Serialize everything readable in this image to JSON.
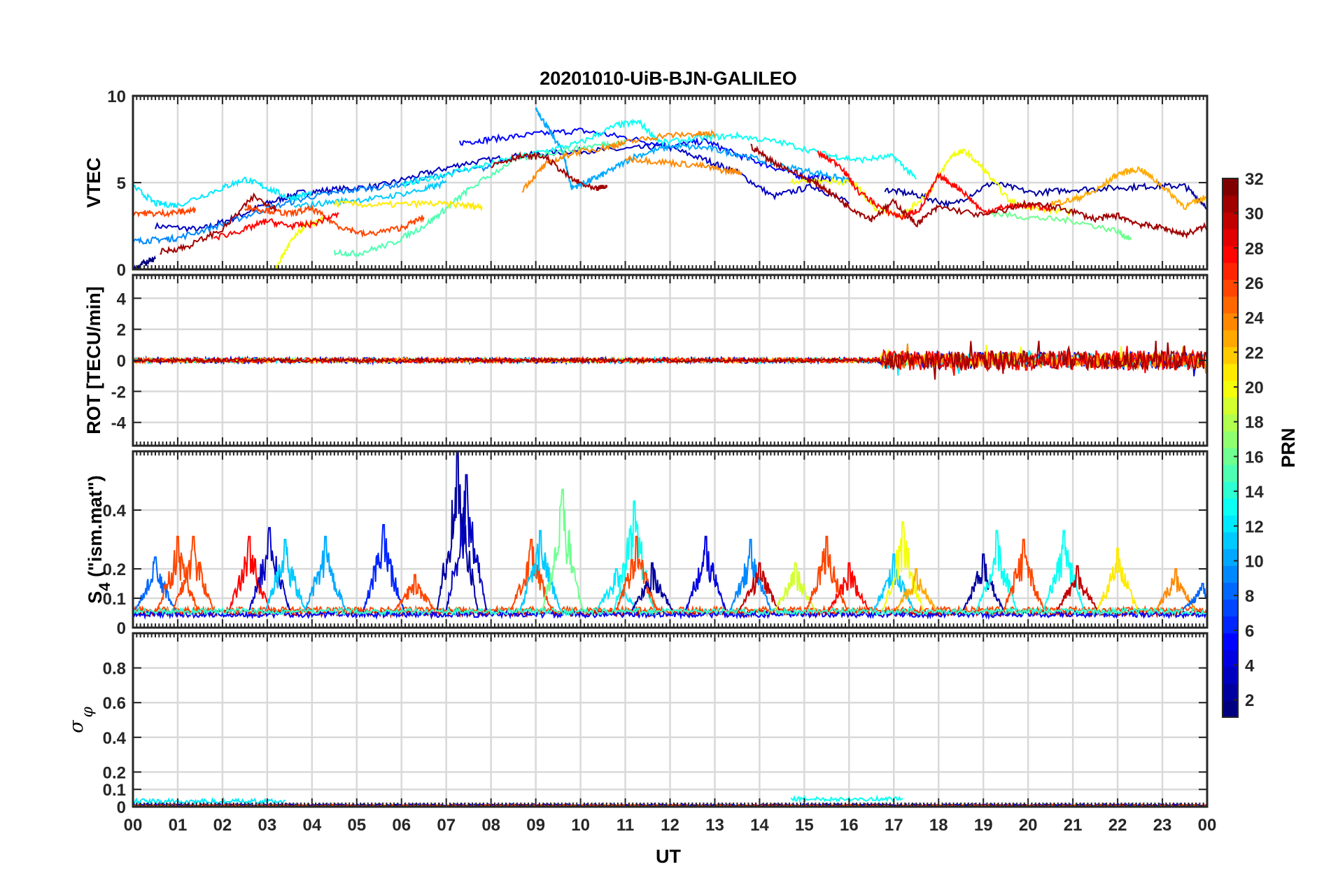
{
  "chart_data": {
    "type": "line",
    "title": "20201010-UiB-BJN-GALILEO",
    "xlabel": "UT",
    "x_ticks": [
      "00",
      "01",
      "02",
      "03",
      "04",
      "05",
      "06",
      "07",
      "08",
      "09",
      "10",
      "11",
      "12",
      "13",
      "14",
      "15",
      "16",
      "17",
      "18",
      "19",
      "20",
      "21",
      "22",
      "23",
      "00"
    ],
    "xlim": [
      0,
      24
    ],
    "grid": true,
    "colorbar": {
      "label": "PRN",
      "range": [
        1,
        32
      ],
      "ticks": [
        "2",
        "4",
        "6",
        "8",
        "10",
        "12",
        "14",
        "16",
        "18",
        "20",
        "22",
        "24",
        "26",
        "28",
        "30",
        "32"
      ],
      "colormap": "jet"
    },
    "panels": [
      {
        "ylabel": "VTEC",
        "ylim": [
          0,
          10
        ],
        "y_ticks": [
          "0",
          "5",
          "10"
        ],
        "series": [
          {
            "prn": 3,
            "x": [
              0.5,
              1.5,
              2.2,
              3.0,
              3.7,
              4.5,
              5.5,
              6.5,
              7.4,
              8.5,
              9.7,
              10.8,
              11.9,
              12.8,
              13.5,
              14.3,
              15.2,
              16.0
            ],
            "y": [
              2.5,
              2.3,
              2.9,
              3.8,
              4.4,
              4.6,
              4.8,
              5.5,
              6.1,
              6.5,
              6.8,
              6.9,
              7.1,
              6.3,
              5.6,
              4.2,
              4.8,
              3.8
            ]
          },
          {
            "prn": 5,
            "x": [
              7.3,
              8.0,
              9.0,
              10.0,
              11.0,
              12.0,
              12.8,
              13.5,
              14.3,
              15.0,
              15.6
            ],
            "y": [
              7.3,
              7.5,
              7.8,
              8.0,
              7.6,
              7.1,
              7.4,
              6.6,
              5.9,
              5.3,
              5.2
            ]
          },
          {
            "prn": 2,
            "x": [
              16.8,
              17.5,
              18.3,
              19.2,
              20.1,
              21.0,
              22.0,
              22.8,
              23.5,
              24.0
            ],
            "y": [
              4.6,
              4.3,
              3.7,
              5.0,
              4.4,
              4.6,
              4.7,
              4.8,
              4.8,
              3.6
            ]
          },
          {
            "prn": 9,
            "x": [
              0.0,
              0.5,
              1.0,
              2.0,
              3.0,
              4.0,
              5.0,
              6.0,
              7.0,
              8.0
            ],
            "y": [
              1.6,
              1.7,
              1.8,
              2.6,
              3.5,
              4.2,
              4.6,
              4.9,
              5.5,
              5.9
            ]
          },
          {
            "prn": 10,
            "x": [
              9.0,
              9.3,
              9.6,
              9.8,
              10.2,
              10.6,
              11.2,
              12.0,
              12.8,
              13.6,
              14.6,
              15.4,
              16.0
            ],
            "y": [
              9.3,
              8.0,
              6.8,
              4.7,
              5.1,
              5.6,
              6.5,
              7.1,
              7.0,
              6.6,
              5.9,
              5.5,
              5.1
            ]
          },
          {
            "prn": 12,
            "x": [
              0.0,
              0.5,
              1.0,
              2.0,
              2.5,
              3.0,
              3.5,
              4.0
            ],
            "y": [
              4.8,
              3.8,
              3.7,
              4.7,
              5.2,
              4.7,
              4.1,
              4.4
            ]
          },
          {
            "prn": 13,
            "x": [
              6.0,
              7.0,
              8.0,
              9.0,
              10.0,
              10.8,
              11.3,
              11.8,
              12.8,
              13.5,
              14.5,
              15.5,
              16.2,
              17.0,
              17.5
            ],
            "y": [
              4.8,
              5.5,
              6.1,
              6.7,
              7.3,
              8.3,
              8.5,
              7.3,
              7.6,
              7.7,
              7.3,
              6.6,
              6.3,
              6.5,
              5.2
            ]
          },
          {
            "prn": 11,
            "x": [
              3.6,
              4.5,
              5.5,
              6.5,
              7.0
            ],
            "y": [
              3.6,
              3.9,
              4.1,
              4.6,
              5.0
            ]
          },
          {
            "prn": 15,
            "x": [
              4.5,
              5.0,
              5.8,
              6.5,
              7.0,
              7.5,
              8.5,
              9.5,
              10.5,
              11.0
            ],
            "y": [
              1.0,
              0.9,
              1.5,
              2.5,
              3.5,
              4.6,
              6.3,
              6.8,
              7.2,
              7.3
            ]
          },
          {
            "prn": 16,
            "x": [
              19.0,
              20.0,
              21.0,
              22.0,
              22.3
            ],
            "y": [
              3.3,
              3.0,
              2.8,
              2.2,
              1.7
            ]
          },
          {
            "prn": 20,
            "x": [
              3.2,
              3.5,
              3.8,
              4.3
            ],
            "y": [
              0.1,
              1.5,
              2.4,
              3.0
            ]
          },
          {
            "prn": 21,
            "x": [
              4.5,
              5.5,
              6.5,
              7.4,
              7.8
            ],
            "y": [
              3.8,
              3.7,
              3.8,
              3.7,
              3.6
            ]
          },
          {
            "prn": 20,
            "x": [
              14.7,
              15.5,
              16.1,
              16.6,
              17.2,
              17.8,
              18.3,
              18.6,
              19.0,
              19.6,
              20.2,
              21.0
            ],
            "y": [
              5.1,
              5.1,
              5.0,
              3.5,
              3.1,
              4.5,
              6.6,
              6.8,
              5.8,
              3.9,
              3.5,
              3.3
            ]
          },
          {
            "prn": 23,
            "x": [
              20.5,
              21.0,
              21.5,
              22.0,
              22.5,
              23.0,
              23.5,
              24.0
            ],
            "y": [
              3.8,
              4.0,
              4.5,
              5.5,
              5.8,
              4.8,
              3.6,
              4.2
            ]
          },
          {
            "prn": 24,
            "x": [
              8.7,
              9.2,
              9.8,
              10.5,
              11.0,
              11.8,
              12.6,
              13.0
            ],
            "y": [
              4.6,
              6.0,
              6.7,
              7.0,
              7.3,
              7.7,
              7.8,
              7.8
            ]
          },
          {
            "prn": 24,
            "x": [
              11.0,
              11.8,
              12.6,
              13.2,
              13.6
            ],
            "y": [
              6.4,
              6.2,
              6.0,
              5.7,
              5.6
            ]
          },
          {
            "prn": 26,
            "x": [
              0.0,
              0.5,
              1.0,
              1.4
            ],
            "y": [
              3.3,
              3.2,
              3.3,
              3.4
            ]
          },
          {
            "prn": 26,
            "x": [
              2.5,
              3.0,
              3.5,
              4.0,
              4.6,
              5.2,
              6.0,
              6.5
            ],
            "y": [
              3.6,
              3.4,
              3.2,
              3.5,
              2.5,
              2.0,
              2.4,
              3.0
            ]
          },
          {
            "prn": 28,
            "x": [
              1.8,
              2.5,
              3.0,
              3.5,
              4.0,
              4.6
            ],
            "y": [
              1.8,
              2.3,
              2.8,
              2.5,
              2.6,
              3.2
            ]
          },
          {
            "prn": 28,
            "x": [
              15.3,
              15.8,
              16.2,
              16.8,
              17.2,
              17.6,
              18.0,
              18.5,
              19.0,
              19.5,
              20.0,
              20.5
            ],
            "y": [
              6.7,
              6.0,
              4.5,
              3.4,
              3.0,
              3.5,
              5.4,
              4.6,
              3.3,
              3.6,
              3.7,
              3.5
            ]
          },
          {
            "prn": 31,
            "x": [
              0.6,
              1.2,
              2.0,
              2.7,
              3.2
            ],
            "y": [
              1.0,
              1.3,
              2.3,
              4.2,
              3.5
            ]
          },
          {
            "prn": 31,
            "x": [
              8.0,
              8.6,
              9.2,
              9.8,
              10.3,
              10.6
            ],
            "y": [
              6.0,
              6.5,
              6.5,
              5.2,
              4.6,
              4.8
            ]
          },
          {
            "prn": 31,
            "x": [
              13.8,
              14.3,
              15.0,
              15.5,
              16.0,
              16.5,
              17.0,
              17.5,
              18.0,
              19.0,
              20.0,
              20.8,
              21.5,
              22.0,
              22.5,
              23.0,
              23.5,
              24.0
            ],
            "y": [
              7.1,
              6.2,
              5.3,
              4.6,
              3.6,
              2.9,
              3.9,
              2.6,
              3.6,
              3.1,
              3.8,
              3.5,
              2.9,
              3.1,
              2.6,
              2.4,
              2.0,
              2.5
            ]
          },
          {
            "prn": 1,
            "x": [
              0.0,
              0.2,
              0.5
            ],
            "y": [
              0.0,
              0.3,
              0.6
            ]
          }
        ]
      },
      {
        "ylabel": "ROT [TECU/min]",
        "ylim": [
          -5.5,
          5.5
        ],
        "y_ticks": [
          "-4",
          "-2",
          "0",
          "2",
          "4"
        ],
        "series": [
          {
            "prn": 4,
            "x_range": [
              0,
              24
            ],
            "amplitude": [
              0.18,
              0.35
            ],
            "quiet_until": 16.7,
            "active_amplitude": 0.55
          },
          {
            "prn": 12,
            "x_range": [
              0,
              24
            ],
            "amplitude": [
              0.15,
              0.3
            ],
            "quiet_until": 16.7,
            "active_amplitude": 0.45
          },
          {
            "prn": 20,
            "x_range": [
              0,
              24
            ],
            "amplitude": [
              0.12,
              0.25
            ],
            "quiet_until": 16.7,
            "active_amplitude": 0.45
          },
          {
            "prn": 24,
            "x_range": [
              0,
              24
            ],
            "amplitude": [
              0.15,
              0.28
            ],
            "quiet_until": 16.7,
            "active_amplitude": 0.5
          },
          {
            "prn": 28,
            "x_range": [
              0,
              24
            ],
            "amplitude": [
              0.15,
              0.3
            ],
            "quiet_until": 16.7,
            "active_amplitude": 0.65
          },
          {
            "prn": 31,
            "x_range": [
              0,
              24
            ],
            "amplitude": [
              0.12,
              0.25
            ],
            "quiet_until": 16.7,
            "active_amplitude": 0.6
          }
        ]
      },
      {
        "ylabel": "S4 (\"ism.mat\")",
        "ylim": [
          0,
          0.6
        ],
        "y_ticks": [
          "0",
          "0.1",
          "0.2",
          "0.4"
        ],
        "baseline_series": [
          {
            "prn": 30,
            "level": 0.05
          },
          {
            "prn": 5,
            "level": 0.045
          },
          {
            "prn": 26,
            "level": 0.06
          },
          {
            "prn": 14,
            "level": 0.055
          }
        ],
        "bursts": [
          {
            "prn": 8,
            "x": 0.5,
            "peak": 0.24
          },
          {
            "prn": 26,
            "x": 1.0,
            "peak": 0.31
          },
          {
            "prn": 26,
            "x": 1.35,
            "peak": 0.31
          },
          {
            "prn": 28,
            "x": 2.6,
            "peak": 0.31
          },
          {
            "prn": 3,
            "x": 3.05,
            "peak": 0.34
          },
          {
            "prn": 11,
            "x": 3.4,
            "peak": 0.3
          },
          {
            "prn": 10,
            "x": 4.3,
            "peak": 0.31
          },
          {
            "prn": 6,
            "x": 5.6,
            "peak": 0.35
          },
          {
            "prn": 26,
            "x": 6.3,
            "peak": 0.18
          },
          {
            "prn": 2,
            "x": 7.25,
            "peak": 0.6
          },
          {
            "prn": 3,
            "x": 7.45,
            "peak": 0.52
          },
          {
            "prn": 26,
            "x": 8.9,
            "peak": 0.3
          },
          {
            "prn": 11,
            "x": 9.1,
            "peak": 0.33
          },
          {
            "prn": 16,
            "x": 9.6,
            "peak": 0.47
          },
          {
            "prn": 12,
            "x": 10.8,
            "peak": 0.2
          },
          {
            "prn": 13,
            "x": 11.2,
            "peak": 0.43
          },
          {
            "prn": 26,
            "x": 11.25,
            "peak": 0.31
          },
          {
            "prn": 2,
            "x": 11.6,
            "peak": 0.22
          },
          {
            "prn": 4,
            "x": 12.8,
            "peak": 0.31
          },
          {
            "prn": 9,
            "x": 13.8,
            "peak": 0.3
          },
          {
            "prn": 30,
            "x": 14.0,
            "peak": 0.22
          },
          {
            "prn": 19,
            "x": 14.8,
            "peak": 0.22
          },
          {
            "prn": 26,
            "x": 15.5,
            "peak": 0.31
          },
          {
            "prn": 28,
            "x": 16.0,
            "peak": 0.22
          },
          {
            "prn": 11,
            "x": 17.0,
            "peak": 0.25
          },
          {
            "prn": 20,
            "x": 17.2,
            "peak": 0.36
          },
          {
            "prn": 23,
            "x": 17.5,
            "peak": 0.2
          },
          {
            "prn": 2,
            "x": 19.0,
            "peak": 0.25
          },
          {
            "prn": 13,
            "x": 19.3,
            "peak": 0.33
          },
          {
            "prn": 26,
            "x": 19.9,
            "peak": 0.3
          },
          {
            "prn": 13,
            "x": 20.8,
            "peak": 0.33
          },
          {
            "prn": 30,
            "x": 21.1,
            "peak": 0.21
          },
          {
            "prn": 21,
            "x": 22.0,
            "peak": 0.27
          },
          {
            "prn": 24,
            "x": 23.3,
            "peak": 0.2
          },
          {
            "prn": 8,
            "x": 23.9,
            "peak": 0.15
          }
        ]
      },
      {
        "ylabel": "σ φ",
        "ylim": [
          0,
          1
        ],
        "y_ticks": [
          "0",
          "0.1",
          "0.2",
          "0.4",
          "0.6",
          "0.8"
        ],
        "series": [
          {
            "prn": 12,
            "x_range": [
              0,
              3.4
            ],
            "level": 0.03,
            "amplitude": 0.015
          },
          {
            "prn": 13,
            "x_range": [
              14.7,
              17.2
            ],
            "level": 0.045,
            "amplitude": 0.012
          },
          {
            "prn": 30,
            "x_range": [
              0,
              24
            ],
            "level": 0.008,
            "amplitude": 0.006
          },
          {
            "prn": 4,
            "x_range": [
              0,
              24
            ],
            "level": 0.01,
            "amplitude": 0.006
          },
          {
            "prn": 26,
            "x_range": [
              0,
              24
            ],
            "level": 0.006,
            "amplitude": 0.005
          }
        ]
      }
    ]
  }
}
